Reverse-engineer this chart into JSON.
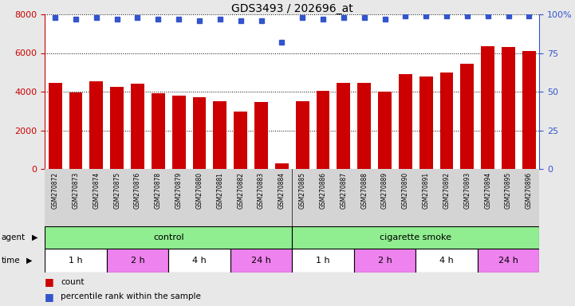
{
  "title": "GDS3493 / 202696_at",
  "samples": [
    "GSM270872",
    "GSM270873",
    "GSM270874",
    "GSM270875",
    "GSM270876",
    "GSM270878",
    "GSM270879",
    "GSM270880",
    "GSM270881",
    "GSM270882",
    "GSM270883",
    "GSM270884",
    "GSM270885",
    "GSM270886",
    "GSM270887",
    "GSM270888",
    "GSM270889",
    "GSM270890",
    "GSM270891",
    "GSM270892",
    "GSM270893",
    "GSM270894",
    "GSM270895",
    "GSM270896"
  ],
  "counts": [
    4450,
    3950,
    4550,
    4250,
    4400,
    3900,
    3800,
    3700,
    3500,
    2950,
    3450,
    300,
    3500,
    4050,
    4450,
    4450,
    4000,
    4900,
    4800,
    5000,
    5450,
    6350,
    6300,
    6100
  ],
  "percentile": [
    98,
    97,
    98,
    97,
    98,
    97,
    97,
    96,
    97,
    96,
    96,
    82,
    98,
    97,
    98,
    98,
    97,
    99,
    99,
    99,
    99,
    99,
    99,
    99
  ],
  "bar_color": "#cc0000",
  "dot_color": "#3355cc",
  "ylim_left": [
    0,
    8000
  ],
  "ylim_right": [
    0,
    100
  ],
  "yticks_left": [
    0,
    2000,
    4000,
    6000,
    8000
  ],
  "yticks_right": [
    0,
    25,
    50,
    75,
    100
  ],
  "agent_groups": [
    {
      "label": "control",
      "start": 0,
      "end": 12,
      "color": "#90ee90"
    },
    {
      "label": "cigarette smoke",
      "start": 12,
      "end": 24,
      "color": "#90ee90"
    }
  ],
  "time_groups": [
    {
      "label": "1 h",
      "start": 0,
      "end": 3,
      "color": "#ffffff"
    },
    {
      "label": "2 h",
      "start": 3,
      "end": 6,
      "color": "#ee82ee"
    },
    {
      "label": "4 h",
      "start": 6,
      "end": 9,
      "color": "#ffffff"
    },
    {
      "label": "24 h",
      "start": 9,
      "end": 12,
      "color": "#ee82ee"
    },
    {
      "label": "1 h",
      "start": 12,
      "end": 15,
      "color": "#ffffff"
    },
    {
      "label": "2 h",
      "start": 15,
      "end": 18,
      "color": "#ee82ee"
    },
    {
      "label": "4 h",
      "start": 18,
      "end": 21,
      "color": "#ffffff"
    },
    {
      "label": "24 h",
      "start": 21,
      "end": 24,
      "color": "#ee82ee"
    }
  ],
  "fig_bg": "#e8e8e8",
  "plot_bg": "#ffffff",
  "xlabel_bg": "#d8d8d8",
  "fig_w": 7.21,
  "fig_h": 3.84,
  "dpi": 100
}
